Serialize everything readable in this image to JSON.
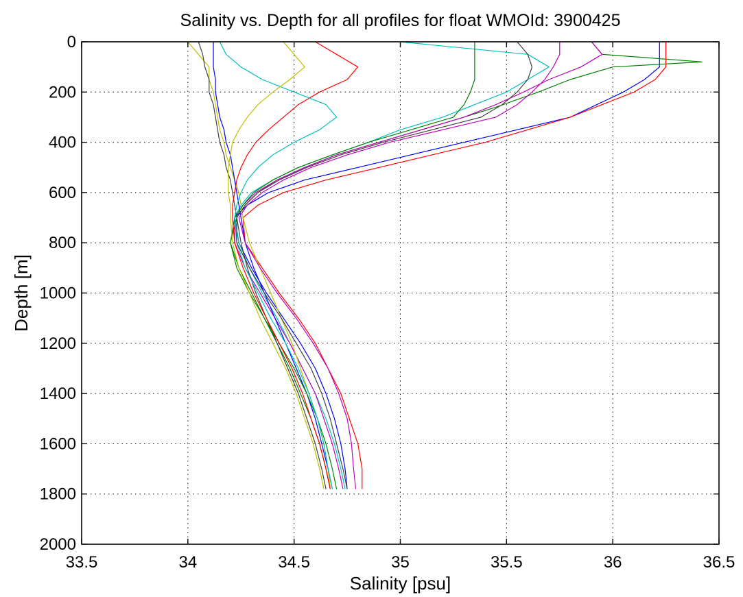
{
  "chart_data": {
    "type": "line",
    "title": "Salinity vs. Depth for all profiles for float WMOId: 3900425",
    "xlabel": "Salinity [psu]",
    "ylabel": "Depth [m]",
    "xlim": [
      33.5,
      36.5
    ],
    "ylim": [
      0,
      2000
    ],
    "y_reversed": true,
    "grid": true,
    "grid_style": "dotted",
    "xticks": [
      33.5,
      34,
      34.5,
      35,
      35.5,
      36,
      36.5
    ],
    "yticks": [
      0,
      200,
      400,
      600,
      800,
      1000,
      1200,
      1400,
      1600,
      1800,
      2000
    ],
    "xtick_labels": [
      "33.5",
      "34",
      "34.5",
      "35",
      "35.5",
      "36",
      "36.5"
    ],
    "ytick_labels": [
      "0",
      "200",
      "400",
      "600",
      "800",
      "1000",
      "1200",
      "1400",
      "1600",
      "1800",
      "2000"
    ],
    "series_colors": [
      "#0000ff",
      "#008000",
      "#ff0000",
      "#00bfbf",
      "#bf00bf",
      "#bfbf00",
      "#404040"
    ],
    "series": [
      {
        "depth": [
          0,
          50,
          100,
          150,
          200,
          260,
          300,
          350,
          400,
          450,
          500,
          550,
          600,
          650,
          700,
          800,
          900,
          1000,
          1100,
          1200,
          1300,
          1400,
          1500,
          1600,
          1700,
          1780
        ],
        "salinity": [
          36.22,
          36.22,
          36.22,
          36.15,
          36.05,
          35.9,
          35.8,
          35.55,
          35.3,
          35.05,
          34.8,
          34.55,
          34.38,
          34.28,
          34.22,
          34.24,
          34.3,
          34.37,
          34.45,
          34.53,
          34.6,
          34.65,
          34.69,
          34.72,
          34.74,
          34.75
        ]
      },
      {
        "depth": [
          0,
          50,
          80,
          100,
          150,
          200,
          260,
          300,
          350,
          400,
          450,
          500,
          550,
          600,
          650,
          700,
          800,
          900,
          1000,
          1100,
          1200,
          1300,
          1400,
          1500,
          1600,
          1700,
          1780
        ],
        "salinity": [
          35.9,
          35.95,
          36.42,
          36.0,
          35.8,
          35.65,
          35.45,
          35.3,
          35.1,
          34.9,
          34.7,
          34.55,
          34.42,
          34.33,
          34.27,
          34.23,
          34.2,
          34.24,
          34.3,
          34.36,
          34.42,
          34.48,
          34.53,
          34.58,
          34.62,
          34.65,
          34.67
        ]
      },
      {
        "depth": [
          0,
          50,
          100,
          150,
          200,
          250,
          300,
          350,
          400,
          450,
          500,
          550,
          600,
          650,
          700,
          800,
          900,
          1000,
          1100,
          1200,
          1300,
          1400,
          1500,
          1600,
          1700,
          1780
        ],
        "salinity": [
          36.25,
          36.25,
          36.25,
          36.2,
          36.1,
          35.95,
          35.8,
          35.6,
          35.4,
          35.15,
          34.9,
          34.65,
          34.45,
          34.33,
          34.26,
          34.27,
          34.35,
          34.43,
          34.52,
          34.6,
          34.66,
          34.72,
          34.76,
          34.8,
          34.82,
          34.82
        ]
      },
      {
        "depth": [
          0,
          50,
          100,
          150,
          200,
          250,
          300,
          350,
          400,
          450,
          500,
          550,
          600,
          650,
          700,
          800,
          900,
          1000,
          1100,
          1200,
          1300,
          1400,
          1500,
          1600,
          1700,
          1780
        ],
        "salinity": [
          35.0,
          35.6,
          35.7,
          35.6,
          35.5,
          35.35,
          35.2,
          35.0,
          34.85,
          34.68,
          34.52,
          34.4,
          34.3,
          34.25,
          34.22,
          34.24,
          34.29,
          34.35,
          34.42,
          34.48,
          34.54,
          34.6,
          34.65,
          34.69,
          34.72,
          34.74
        ]
      },
      {
        "depth": [
          0,
          50,
          100,
          150,
          200,
          250,
          300,
          350,
          400,
          450,
          500,
          550,
          600,
          650,
          700,
          800,
          900,
          1000,
          1100,
          1200,
          1300,
          1400,
          1500,
          1600,
          1700,
          1780
        ],
        "salinity": [
          35.9,
          35.95,
          35.85,
          35.7,
          35.58,
          35.45,
          35.3,
          35.1,
          34.9,
          34.7,
          34.55,
          34.42,
          34.32,
          34.26,
          34.22,
          34.22,
          34.27,
          34.34,
          34.41,
          34.48,
          34.54,
          34.6,
          34.64,
          34.68,
          34.71,
          34.73
        ]
      },
      {
        "depth": [
          0,
          50,
          100,
          150,
          200,
          250,
          300,
          350,
          400,
          450,
          500,
          550,
          600,
          650,
          700,
          800,
          900,
          1000,
          1100,
          1200,
          1300,
          1400,
          1500,
          1600,
          1700,
          1780
        ],
        "salinity": [
          34.0,
          34.05,
          34.1,
          34.1,
          34.12,
          34.13,
          34.14,
          34.15,
          34.17,
          34.18,
          34.2,
          34.22,
          34.24,
          34.25,
          34.26,
          34.29,
          34.34,
          34.39,
          34.44,
          34.49,
          34.53,
          34.57,
          34.61,
          34.64,
          34.66,
          34.67
        ]
      },
      {
        "depth": [
          0,
          50,
          100,
          150,
          200,
          250,
          300,
          350,
          400,
          450,
          500,
          550,
          600,
          650,
          700,
          800,
          900,
          1000,
          1100,
          1200,
          1300,
          1400,
          1500,
          1600,
          1700,
          1780
        ],
        "salinity": [
          34.05,
          34.07,
          34.08,
          34.1,
          34.1,
          34.12,
          34.13,
          34.14,
          34.15,
          34.17,
          34.18,
          34.2,
          34.21,
          34.22,
          34.23,
          34.25,
          34.28,
          34.32,
          34.37,
          34.42,
          34.47,
          34.52,
          34.56,
          34.6,
          34.63,
          34.65
        ]
      },
      {
        "depth": [
          0,
          50,
          100,
          150,
          200,
          250,
          300,
          350,
          400,
          450,
          500,
          550,
          600,
          650,
          700,
          800,
          900,
          1000,
          1100,
          1200,
          1300,
          1400,
          1500,
          1600,
          1700,
          1780
        ],
        "salinity": [
          34.12,
          34.12,
          34.12,
          34.13,
          34.13,
          34.14,
          34.15,
          34.17,
          34.18,
          34.2,
          34.21,
          34.22,
          34.23,
          34.24,
          34.25,
          34.27,
          34.31,
          34.36,
          34.41,
          34.46,
          34.51,
          34.56,
          34.6,
          34.63,
          34.66,
          34.68
        ]
      },
      {
        "depth": [
          0,
          50,
          100,
          150,
          200,
          250,
          300,
          350,
          400,
          450,
          500,
          550,
          600,
          650,
          700,
          800,
          900,
          1000,
          1100,
          1200,
          1300,
          1400,
          1500,
          1600,
          1700,
          1780
        ],
        "salinity": [
          35.35,
          35.35,
          35.35,
          35.35,
          35.33,
          35.3,
          35.25,
          35.05,
          34.85,
          34.68,
          34.52,
          34.4,
          34.31,
          34.26,
          34.22,
          34.2,
          34.23,
          34.29,
          34.36,
          34.43,
          34.5,
          34.56,
          34.61,
          34.65,
          34.68,
          34.7
        ]
      },
      {
        "depth": [
          0,
          50,
          100,
          150,
          200,
          250,
          300,
          350,
          400,
          450,
          500,
          550,
          600,
          650,
          700,
          800,
          900,
          1000,
          1100,
          1200,
          1300,
          1400,
          1500,
          1600,
          1700,
          1780
        ],
        "salinity": [
          34.6,
          34.7,
          34.8,
          34.75,
          34.62,
          34.52,
          34.45,
          34.38,
          34.32,
          34.28,
          34.25,
          34.23,
          34.22,
          34.21,
          34.21,
          34.22,
          34.26,
          34.31,
          34.37,
          34.43,
          34.49,
          34.54,
          34.58,
          34.62,
          34.65,
          34.67
        ]
      },
      {
        "depth": [
          0,
          50,
          100,
          150,
          200,
          250,
          300,
          350,
          400,
          450,
          500,
          550,
          600,
          650,
          700,
          800,
          900,
          1000,
          1100,
          1200,
          1300,
          1400,
          1500,
          1600,
          1700,
          1780
        ],
        "salinity": [
          34.15,
          34.18,
          34.25,
          34.35,
          34.5,
          34.65,
          34.7,
          34.62,
          34.5,
          34.4,
          34.33,
          34.28,
          34.25,
          34.23,
          34.22,
          34.23,
          34.27,
          34.33,
          34.39,
          34.46,
          34.52,
          34.57,
          34.61,
          34.64,
          34.66,
          34.68
        ]
      },
      {
        "depth": [
          0,
          50,
          100,
          150,
          200,
          250,
          300,
          350,
          400,
          450,
          500,
          550,
          600,
          650,
          700,
          800,
          900,
          1000,
          1100,
          1200,
          1300,
          1400,
          1500,
          1600,
          1700,
          1780
        ],
        "salinity": [
          35.75,
          35.75,
          35.72,
          35.68,
          35.62,
          35.55,
          35.45,
          35.2,
          34.95,
          34.75,
          34.58,
          34.45,
          34.35,
          34.28,
          34.24,
          34.27,
          34.34,
          34.42,
          34.51,
          34.59,
          34.66,
          34.71,
          34.75,
          34.77,
          34.78,
          34.79
        ]
      },
      {
        "depth": [
          0,
          50,
          100,
          150,
          200,
          250,
          300,
          350,
          400,
          450,
          500,
          550,
          600,
          650,
          700,
          800,
          900,
          1000,
          1100,
          1200,
          1300,
          1400,
          1500,
          1600,
          1700,
          1780
        ],
        "salinity": [
          34.45,
          34.5,
          34.55,
          34.48,
          34.4,
          34.33,
          34.28,
          34.24,
          34.21,
          34.2,
          34.19,
          34.19,
          34.19,
          34.2,
          34.2,
          34.21,
          34.24,
          34.29,
          34.34,
          34.4,
          34.46,
          34.51,
          34.55,
          34.59,
          34.62,
          34.64
        ]
      },
      {
        "depth": [
          0,
          50,
          100,
          150,
          200,
          250,
          300,
          350,
          400,
          450,
          500,
          550,
          600,
          650,
          700,
          800,
          900,
          1000,
          1100,
          1200,
          1300,
          1400,
          1500,
          1600,
          1700,
          1780
        ],
        "salinity": [
          35.55,
          35.6,
          35.62,
          35.6,
          35.55,
          35.48,
          35.38,
          35.15,
          34.92,
          34.72,
          34.56,
          34.43,
          34.33,
          34.27,
          34.23,
          34.23,
          34.29,
          34.36,
          34.44,
          34.51,
          34.58,
          34.63,
          34.67,
          34.7,
          34.73,
          34.75
        ]
      }
    ]
  }
}
